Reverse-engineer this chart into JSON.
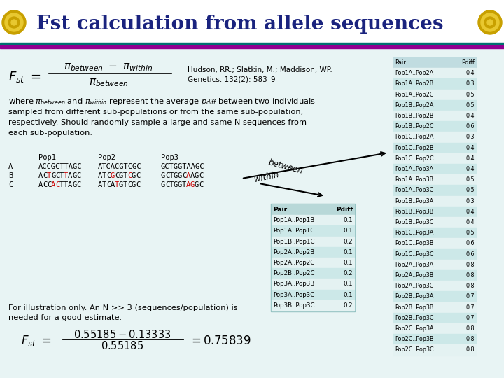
{
  "title": "Fst calculation from allele sequences",
  "title_color": "#1a237e",
  "bg_color": "#e8f4f4",
  "reference_line1": "Hudson, RR.; Slatkin, M.; Maddison, WP.",
  "reference_line2": "Genetics. 132(2): 583–9",
  "seq_data": [
    [
      "",
      "Pop1",
      "Pop2",
      "Pop3"
    ],
    [
      "A",
      "ACCGCTTAGC",
      "ATCACGTCGC",
      "GCTGGTAAGC"
    ],
    [
      "B",
      "ACTGCTTAGC",
      "ATCGCGTCGC",
      "GCTGGCAAGC"
    ],
    [
      "C",
      "ACCACTTAGC",
      "ATCATGTCGC",
      "GCTGGTAGGC"
    ]
  ],
  "highlight": {
    "A1": [],
    "A2": [],
    "A3": [],
    "B1": [
      2,
      6
    ],
    "B2": [
      3,
      7
    ],
    "B3": [
      6
    ],
    "C1": [
      3,
      4
    ],
    "C2": [
      4
    ],
    "C3": [
      6,
      7
    ]
  },
  "illustration_text": "For illustration only. An N >> 3 (sequences/population) is",
  "illustration_text2": "needed for a good estimate.",
  "within_table_headers": [
    "Pair",
    "Pdiff"
  ],
  "within_table_rows": [
    [
      "Pop1A..Pop1B",
      "0.1"
    ],
    [
      "Pop1A..Pop1C",
      "0.1"
    ],
    [
      "Pop1B..Pop1C",
      "0.2"
    ],
    [
      "Pop2A..Pop2B",
      "0.1"
    ],
    [
      "Pop2A..Pop2C",
      "0.1"
    ],
    [
      "Pop2B..Pop2C",
      "0.2"
    ],
    [
      "Pop3A..Pop3B",
      "0.1"
    ],
    [
      "Pop3A..Pop3C",
      "0.1"
    ],
    [
      "Pop3B..Pop3C",
      "0.2"
    ]
  ],
  "between_table_headers": [
    "Pair",
    "Pdiff"
  ],
  "between_table_rows": [
    [
      "Pop1A..Pop2A",
      "0.4"
    ],
    [
      "Pop1A..Pop2B",
      "0.3"
    ],
    [
      "Pop1A..Pop2C",
      "0.5"
    ],
    [
      "Pop1B..Pop2A",
      "0.5"
    ],
    [
      "Pop1B..Pop2B",
      "0.4"
    ],
    [
      "Pop1B..Pop2C",
      "0.6"
    ],
    [
      "Pop1C..Pop2A",
      "0.3"
    ],
    [
      "Pop1C..Pop2B",
      "0.4"
    ],
    [
      "Pop1C..Pop2C",
      "0.4"
    ],
    [
      "Pop1A..Pop3A",
      "0.4"
    ],
    [
      "Pop1A..Pop3B",
      "0.5"
    ],
    [
      "Pop1A..Pop3C",
      "0.5"
    ],
    [
      "Pop1B..Pop3A",
      "0.3"
    ],
    [
      "Pop1B..Pop3B",
      "0.4"
    ],
    [
      "Pop1B..Pop3C",
      "0.4"
    ],
    [
      "Pop1C..Pop3A",
      "0.5"
    ],
    [
      "Pop1C..Pop3B",
      "0.6"
    ],
    [
      "Pop1C..Pop3C",
      "0.6"
    ],
    [
      "Pop2A..Pop3A",
      "0.8"
    ],
    [
      "Pop2A..Pop3B",
      "0.8"
    ],
    [
      "Pop2A..Pop3C",
      "0.8"
    ],
    [
      "Pop2B..Pop3A",
      "0.7"
    ],
    [
      "Pop2B..Pop3B",
      "0.7"
    ],
    [
      "Pop2B..Pop3C",
      "0.7"
    ],
    [
      "Pop2C..Pop3A",
      "0.8"
    ],
    [
      "Pop2C..Pop3B",
      "0.8"
    ],
    [
      "Pop2C..Pop3C",
      "0.8"
    ]
  ]
}
